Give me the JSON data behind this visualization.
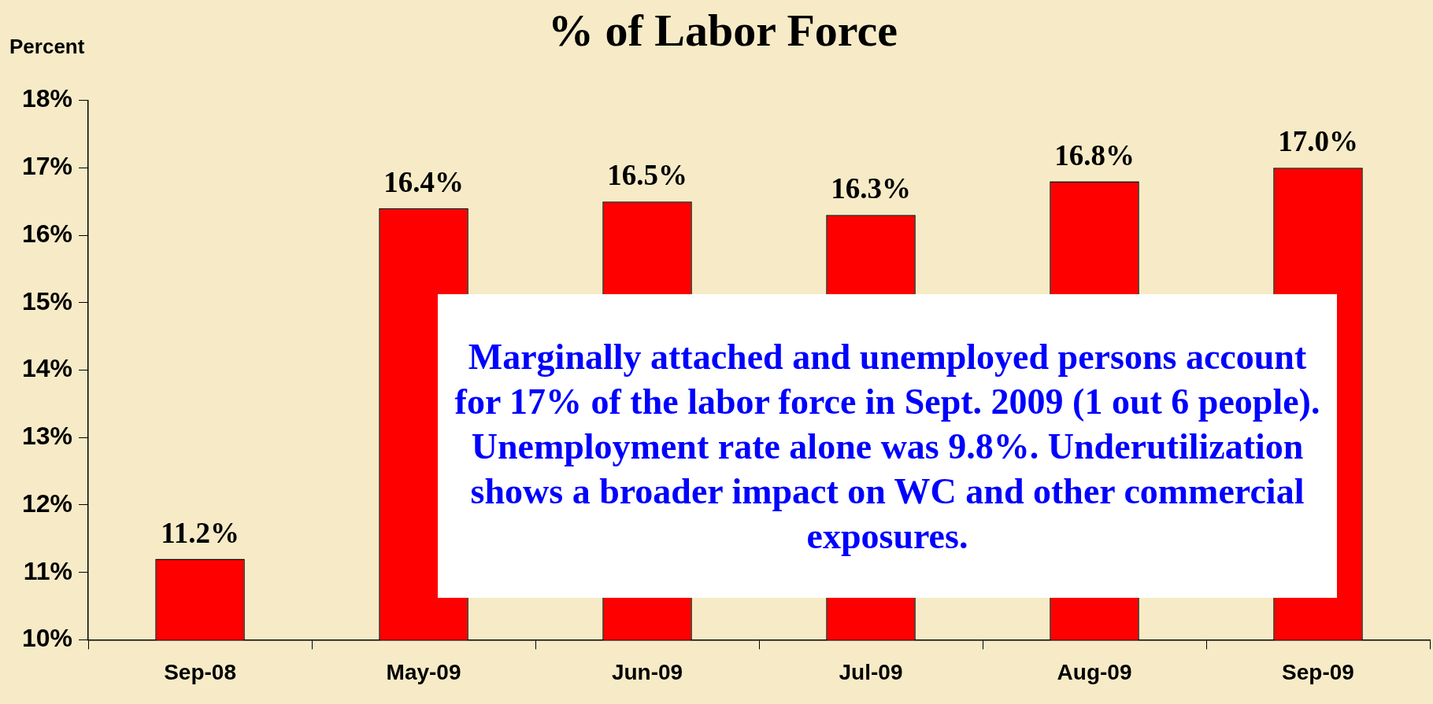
{
  "chart_data": {
    "type": "bar",
    "title": "% of Labor Force",
    "ylabel": "Percent",
    "categories": [
      "Sep-08",
      "May-09",
      "Jun-09",
      "Jul-09",
      "Aug-09",
      "Sep-09"
    ],
    "values": [
      11.2,
      16.4,
      16.5,
      16.3,
      16.8,
      17.0
    ],
    "value_labels": [
      "11.2%",
      "16.4%",
      "16.5%",
      "16.3%",
      "16.8%",
      "17.0%"
    ],
    "color": "#ff0000",
    "ylim": [
      10,
      18
    ],
    "yticks": [
      {
        "value": 10,
        "label": "10%"
      },
      {
        "value": 11,
        "label": "11%"
      },
      {
        "value": 12,
        "label": "12%"
      },
      {
        "value": 13,
        "label": "13%"
      },
      {
        "value": 14,
        "label": "14%"
      },
      {
        "value": 15,
        "label": "15%"
      },
      {
        "value": 16,
        "label": "16%"
      },
      {
        "value": 17,
        "label": "17%"
      },
      {
        "value": 18,
        "label": "18%"
      }
    ],
    "grid": false,
    "legend": false,
    "annotations": [
      "Marginally attached and unemployed persons account for 17% of the labor force in Sept. 2009 (1 out 6 people). Unemployment rate alone was 9.8%. Underutilization shows a broader impact on WC and other commercial exposures."
    ]
  }
}
